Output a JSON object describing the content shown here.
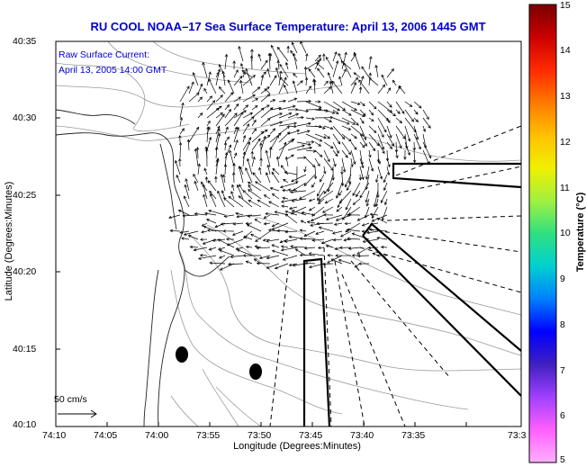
{
  "title": "RU COOL  NOAA–17  Sea Surface Temperature:  April 13, 2006 1445 GMT",
  "inset": {
    "line1": "Raw Surface Current:",
    "line2": "April 13, 2005 14:00 GMT"
  },
  "axes": {
    "xlabel": "Longitude (Degrees:Minutes)",
    "ylabel": "Latitude (Degrees:Minutes)",
    "xticks": [
      "74:10",
      "74:05",
      "74:00",
      "73:55",
      "73:50",
      "73:45",
      "73:40",
      "73:35",
      "73:3"
    ],
    "yticks": [
      "40:35",
      "40:30",
      "40:25",
      "40:20",
      "40:15",
      "40:10"
    ]
  },
  "colorbar": {
    "title": "Temperature (°C)",
    "ticks": [
      "15",
      "14",
      "13",
      "12",
      "11",
      "10",
      "9",
      "8",
      "7",
      "6",
      "5"
    ],
    "colors": [
      "#7a0000",
      "#cc0000",
      "#ff2a00",
      "#ff7a00",
      "#ffc000",
      "#f0f000",
      "#a0f040",
      "#30e080",
      "#00d0d0",
      "#0080ff",
      "#0000ff",
      "#4020c0",
      "#a040ff",
      "#ff60ff",
      "#ffb0ff"
    ]
  },
  "scale": {
    "label": "50 cm/s"
  }
}
